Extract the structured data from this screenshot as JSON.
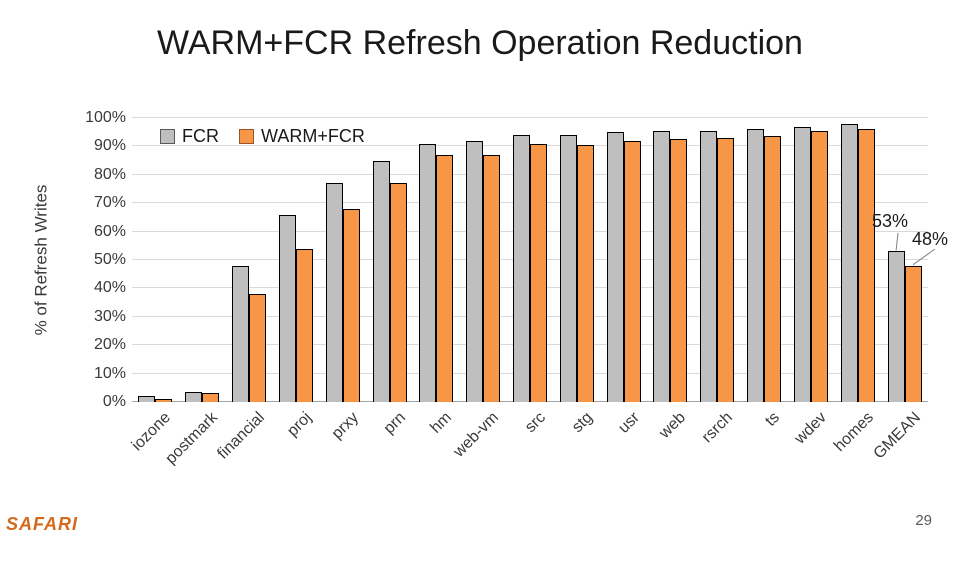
{
  "slide": {
    "title": "WARM+FCR Refresh Operation Reduction",
    "logo_text": "SAFARI",
    "page_number": "29"
  },
  "chart_data": {
    "type": "bar",
    "title": "WARM+FCR Refresh Operation Reduction",
    "xlabel": "",
    "ylabel": "% of Refresh Writes",
    "ylim": [
      0,
      100
    ],
    "ytick_step": 10,
    "yticks": [
      "100%",
      "90%",
      "80%",
      "70%",
      "60%",
      "50%",
      "40%",
      "30%",
      "20%",
      "10%",
      "0%"
    ],
    "grid": true,
    "legend_position": "top-left-inside",
    "categories": [
      "iozone",
      "postmark",
      "financial",
      "proj",
      "prxy",
      "prn",
      "hm",
      "web-vm",
      "src",
      "stg",
      "usr",
      "web",
      "rsrch",
      "ts",
      "wdev",
      "homes",
      "GMEAN"
    ],
    "series": [
      {
        "name": "FCR",
        "color": "#bfbfbf",
        "border": "#000000",
        "values": [
          2,
          3.5,
          48,
          66,
          77,
          85,
          91,
          92,
          94,
          94,
          95,
          95.5,
          95.5,
          96,
          97,
          98,
          53
        ]
      },
      {
        "name": "WARM+FCR",
        "color": "#f79646",
        "border": "#000000",
        "values": [
          1,
          3,
          38,
          54,
          68,
          77,
          87,
          87,
          91,
          90.5,
          92,
          92.5,
          93,
          93.5,
          95.5,
          96,
          48
        ]
      }
    ],
    "annotations": [
      {
        "text": "53%",
        "series": 0,
        "category": "GMEAN"
      },
      {
        "text": "48%",
        "series": 1,
        "category": "GMEAN"
      }
    ]
  },
  "colors": {
    "gridline": "#d9d9d9",
    "axis_line": "#a6a6a6",
    "fcr_fill": "#bfbfbf",
    "warmfcr_fill": "#f79646",
    "logo_orange": "#d4691e",
    "callout_line": "#808080"
  }
}
